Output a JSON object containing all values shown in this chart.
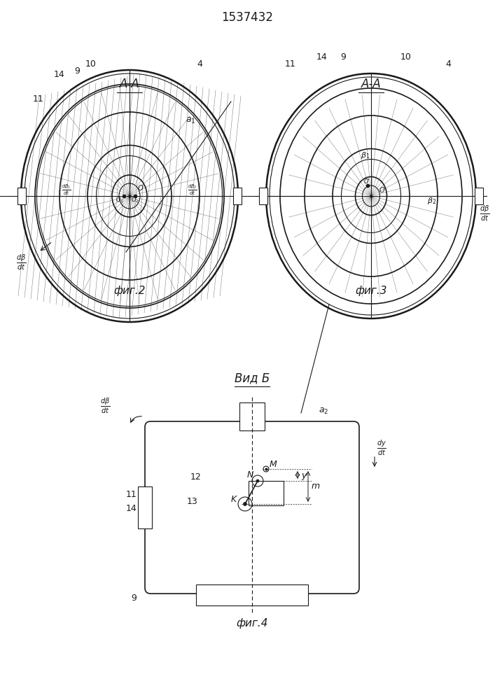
{
  "patent_number": "1537432",
  "fig2_title": "A-A",
  "fig3_title": "A-A",
  "fig4_title": "Вид Б",
  "fig2_caption": "фиг.2",
  "fig3_caption": "фиг.3",
  "fig4_caption": "фиг.4",
  "bg_color": "#ffffff",
  "line_color": "#1a1a1a",
  "hatch_color": "#333333"
}
